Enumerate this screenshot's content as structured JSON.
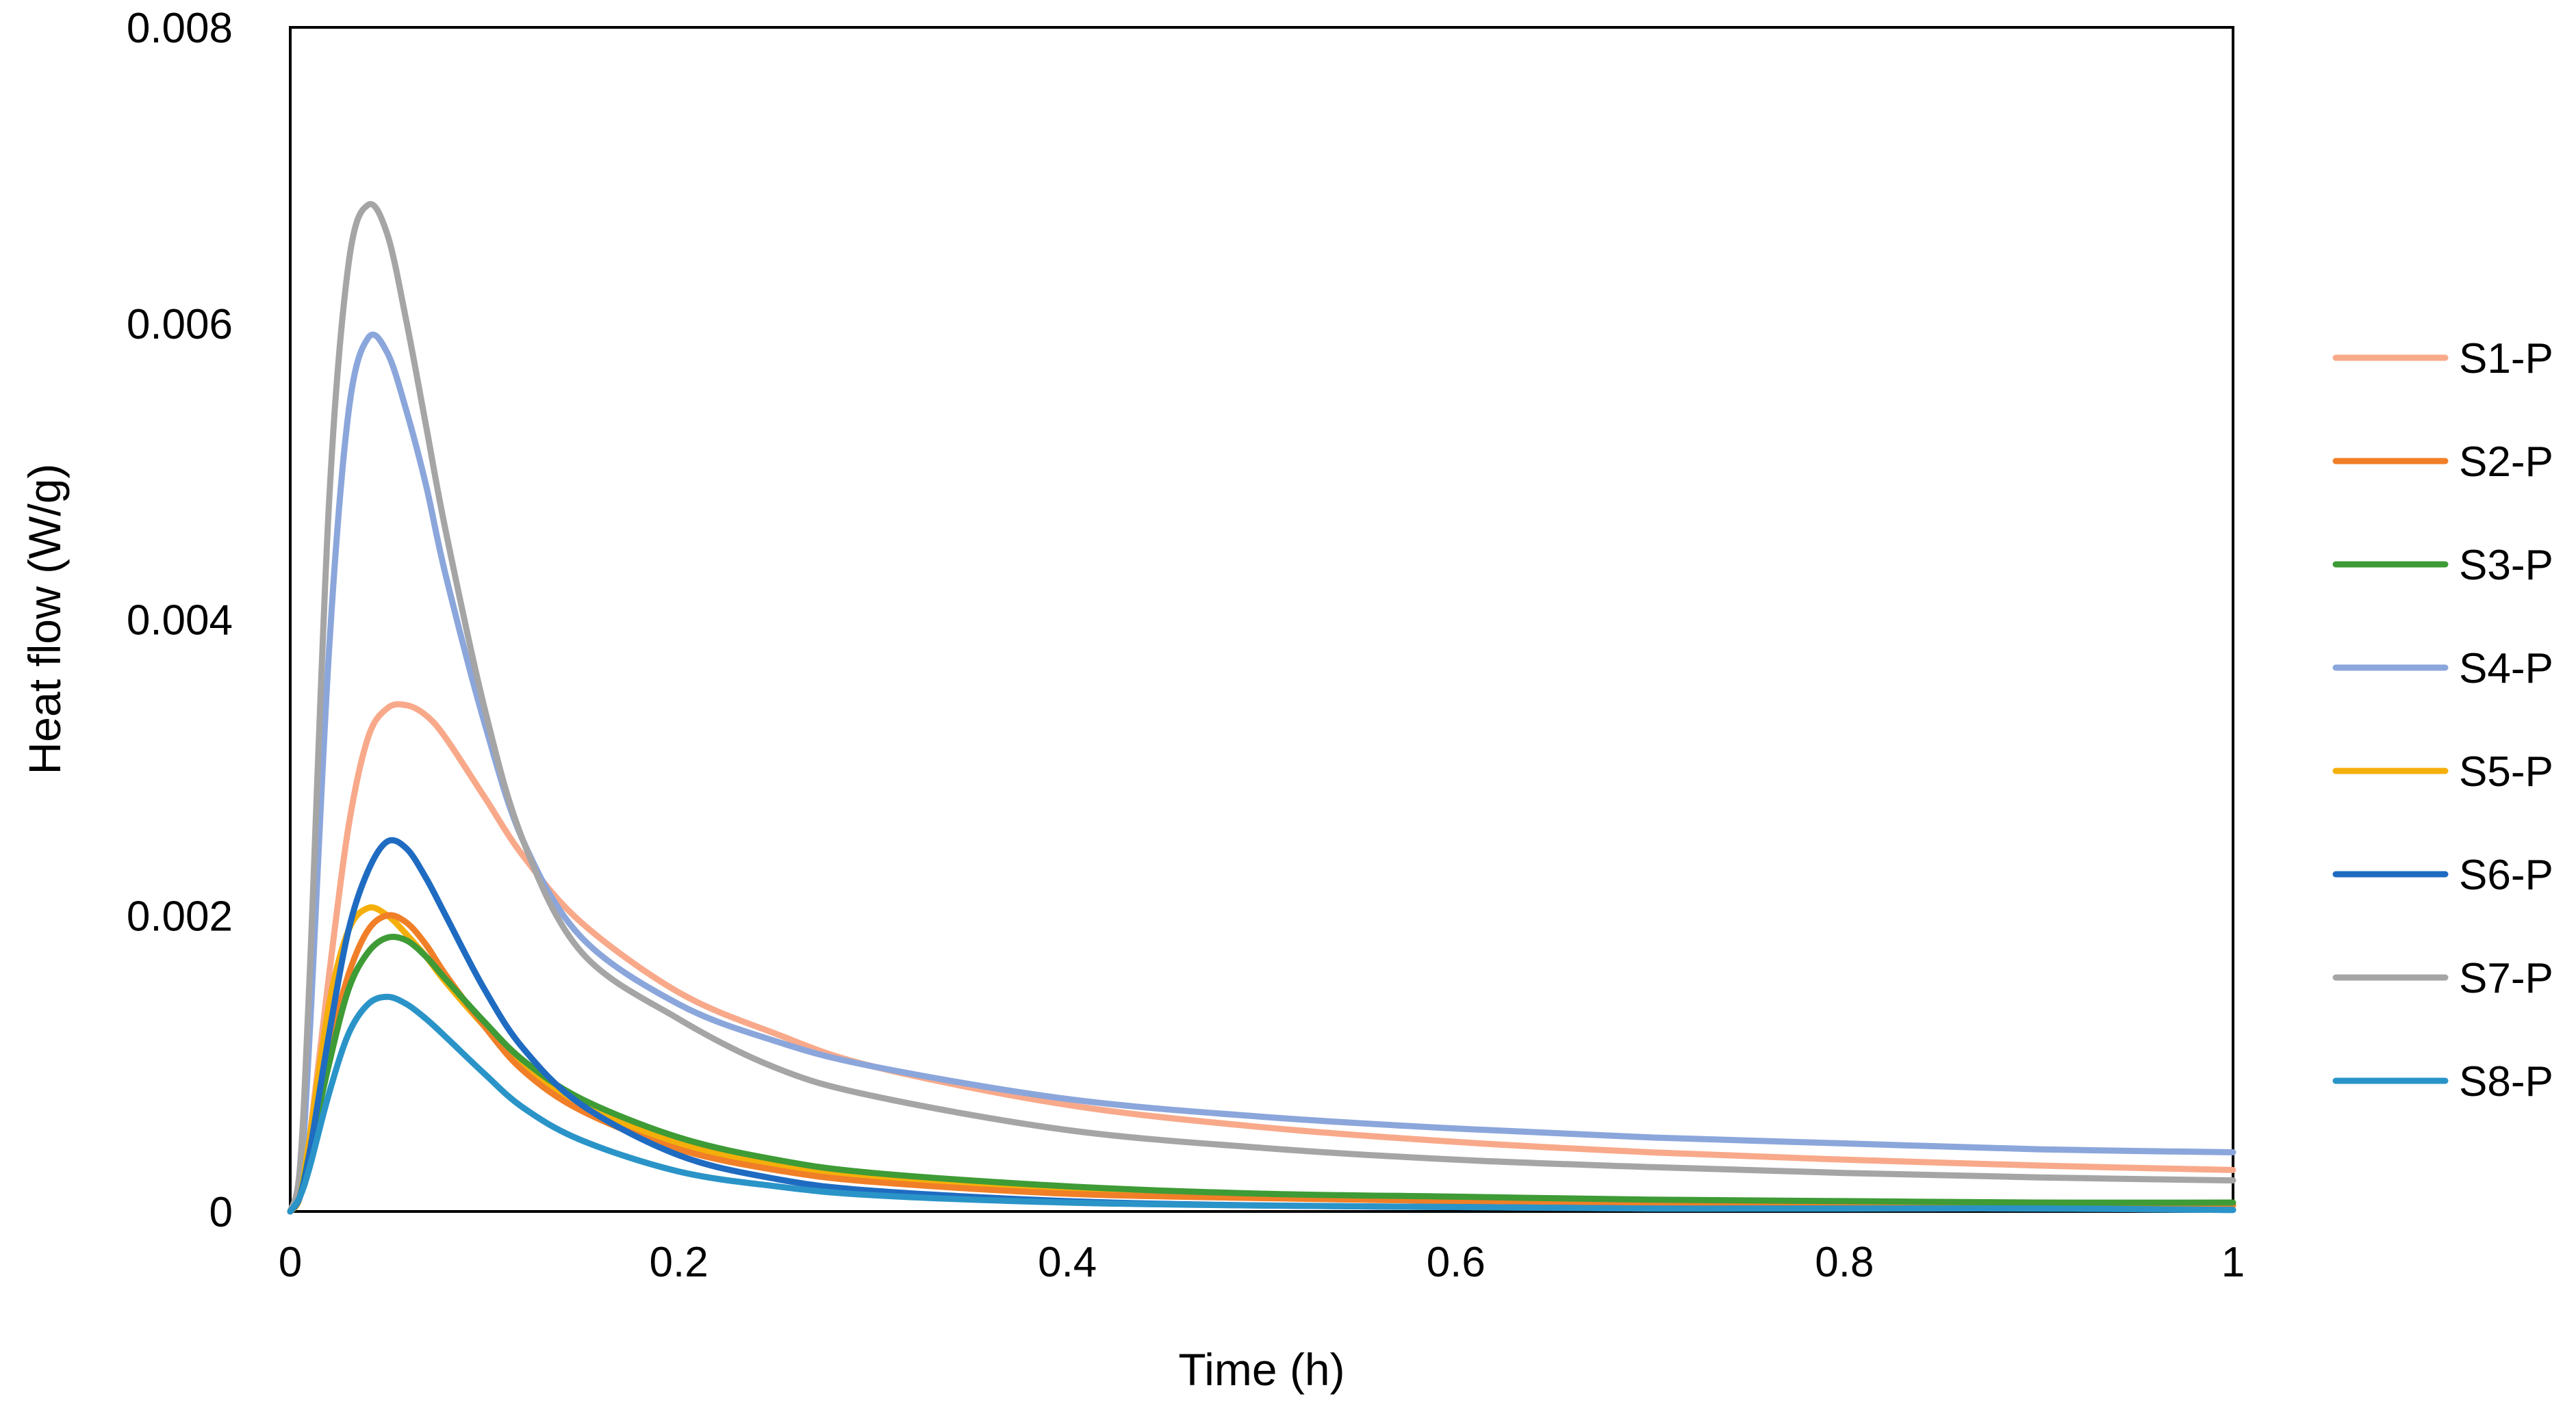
{
  "chart_data": {
    "type": "line",
    "title": "",
    "xlabel": "Time (h)",
    "ylabel": "Heat flow (W/g)",
    "xlim": [
      0,
      1
    ],
    "ylim": [
      0,
      0.008
    ],
    "x_ticks": [
      0,
      0.2,
      0.4,
      0.6,
      0.8,
      1
    ],
    "x_tick_labels": [
      "0",
      "0.2",
      "0.4",
      "0.6",
      "0.8",
      "1"
    ],
    "y_ticks": [
      0,
      0.002,
      0.004,
      0.006,
      0.008
    ],
    "y_tick_labels": [
      "0",
      "0.002",
      "0.004",
      "0.006",
      "0.008"
    ],
    "grid": false,
    "legend_position": "right",
    "x": [
      0,
      0.005,
      0.01,
      0.02,
      0.03,
      0.04,
      0.05,
      0.06,
      0.07,
      0.08,
      0.1,
      0.12,
      0.15,
      0.2,
      0.25,
      0.3,
      0.4,
      0.5,
      0.6,
      0.7,
      0.8,
      0.9,
      1.0
    ],
    "series": [
      {
        "name": "S1-P",
        "color": "#F8A98A",
        "values": [
          0,
          0.0001,
          0.0005,
          0.0016,
          0.0026,
          0.0032,
          0.0034,
          0.00342,
          0.00335,
          0.0032,
          0.0028,
          0.0024,
          0.00195,
          0.00148,
          0.0012,
          0.00098,
          0.00072,
          0.00057,
          0.00047,
          0.0004,
          0.00035,
          0.00031,
          0.00028
        ]
      },
      {
        "name": "S2-P",
        "color": "#F07F28",
        "values": [
          0,
          0.0001,
          0.0004,
          0.0011,
          0.0016,
          0.0019,
          0.002,
          0.00195,
          0.0018,
          0.0016,
          0.00125,
          0.00095,
          0.00068,
          0.00042,
          0.00028,
          0.0002,
          0.00012,
          9e-05,
          7e-05,
          6e-05,
          5e-05,
          5e-05,
          4e-05
        ]
      },
      {
        "name": "S3-P",
        "color": "#3E9B36",
        "values": [
          0,
          0.0001,
          0.0004,
          0.001,
          0.0015,
          0.00175,
          0.00185,
          0.00183,
          0.00172,
          0.00157,
          0.00128,
          0.00102,
          0.00076,
          0.0005,
          0.00035,
          0.00026,
          0.00017,
          0.00012,
          0.0001,
          8e-05,
          7e-05,
          6e-05,
          6e-05
        ]
      },
      {
        "name": "S4-P",
        "color": "#8BA6DB",
        "values": [
          0,
          0.0002,
          0.0012,
          0.0038,
          0.0054,
          0.0059,
          0.0058,
          0.0054,
          0.0049,
          0.0043,
          0.0033,
          0.0025,
          0.00185,
          0.0014,
          0.00115,
          0.00098,
          0.00076,
          0.00064,
          0.00056,
          0.0005,
          0.00046,
          0.00042,
          0.0004
        ]
      },
      {
        "name": "S5-P",
        "color": "#F5AF0A",
        "values": [
          0,
          0.0001,
          0.0005,
          0.0014,
          0.0019,
          0.00205,
          0.002,
          0.00187,
          0.00172,
          0.00155,
          0.00125,
          0.00098,
          0.00072,
          0.00046,
          0.00032,
          0.00023,
          0.00014,
          0.0001,
          8e-05,
          7e-05,
          6e-05,
          5e-05,
          5e-05
        ]
      },
      {
        "name": "S6-P",
        "color": "#1F6BC1",
        "values": [
          0,
          0.0001,
          0.0004,
          0.0012,
          0.0019,
          0.0023,
          0.0025,
          0.00245,
          0.00225,
          0.002,
          0.0015,
          0.0011,
          0.00072,
          0.00038,
          0.00022,
          0.00014,
          7e-05,
          4e-05,
          3e-05,
          2e-05,
          2e-05,
          2e-05,
          1e-05
        ]
      },
      {
        "name": "S7-P",
        "color": "#A5A5A5",
        "values": [
          0,
          0.0003,
          0.0016,
          0.0048,
          0.0064,
          0.0068,
          0.0066,
          0.006,
          0.0053,
          0.0046,
          0.0034,
          0.0025,
          0.00175,
          0.0013,
          0.00097,
          0.00078,
          0.00055,
          0.00043,
          0.00035,
          0.0003,
          0.00026,
          0.00023,
          0.00021
        ]
      },
      {
        "name": "S8-P",
        "color": "#2A94C8",
        "values": [
          0,
          0.0001,
          0.0003,
          0.0008,
          0.0012,
          0.0014,
          0.00145,
          0.0014,
          0.0013,
          0.00118,
          0.00093,
          0.0007,
          0.00048,
          0.00027,
          0.00017,
          0.00011,
          6e-05,
          4e-05,
          3e-05,
          2e-05,
          2e-05,
          2e-05,
          1e-05
        ]
      }
    ]
  }
}
